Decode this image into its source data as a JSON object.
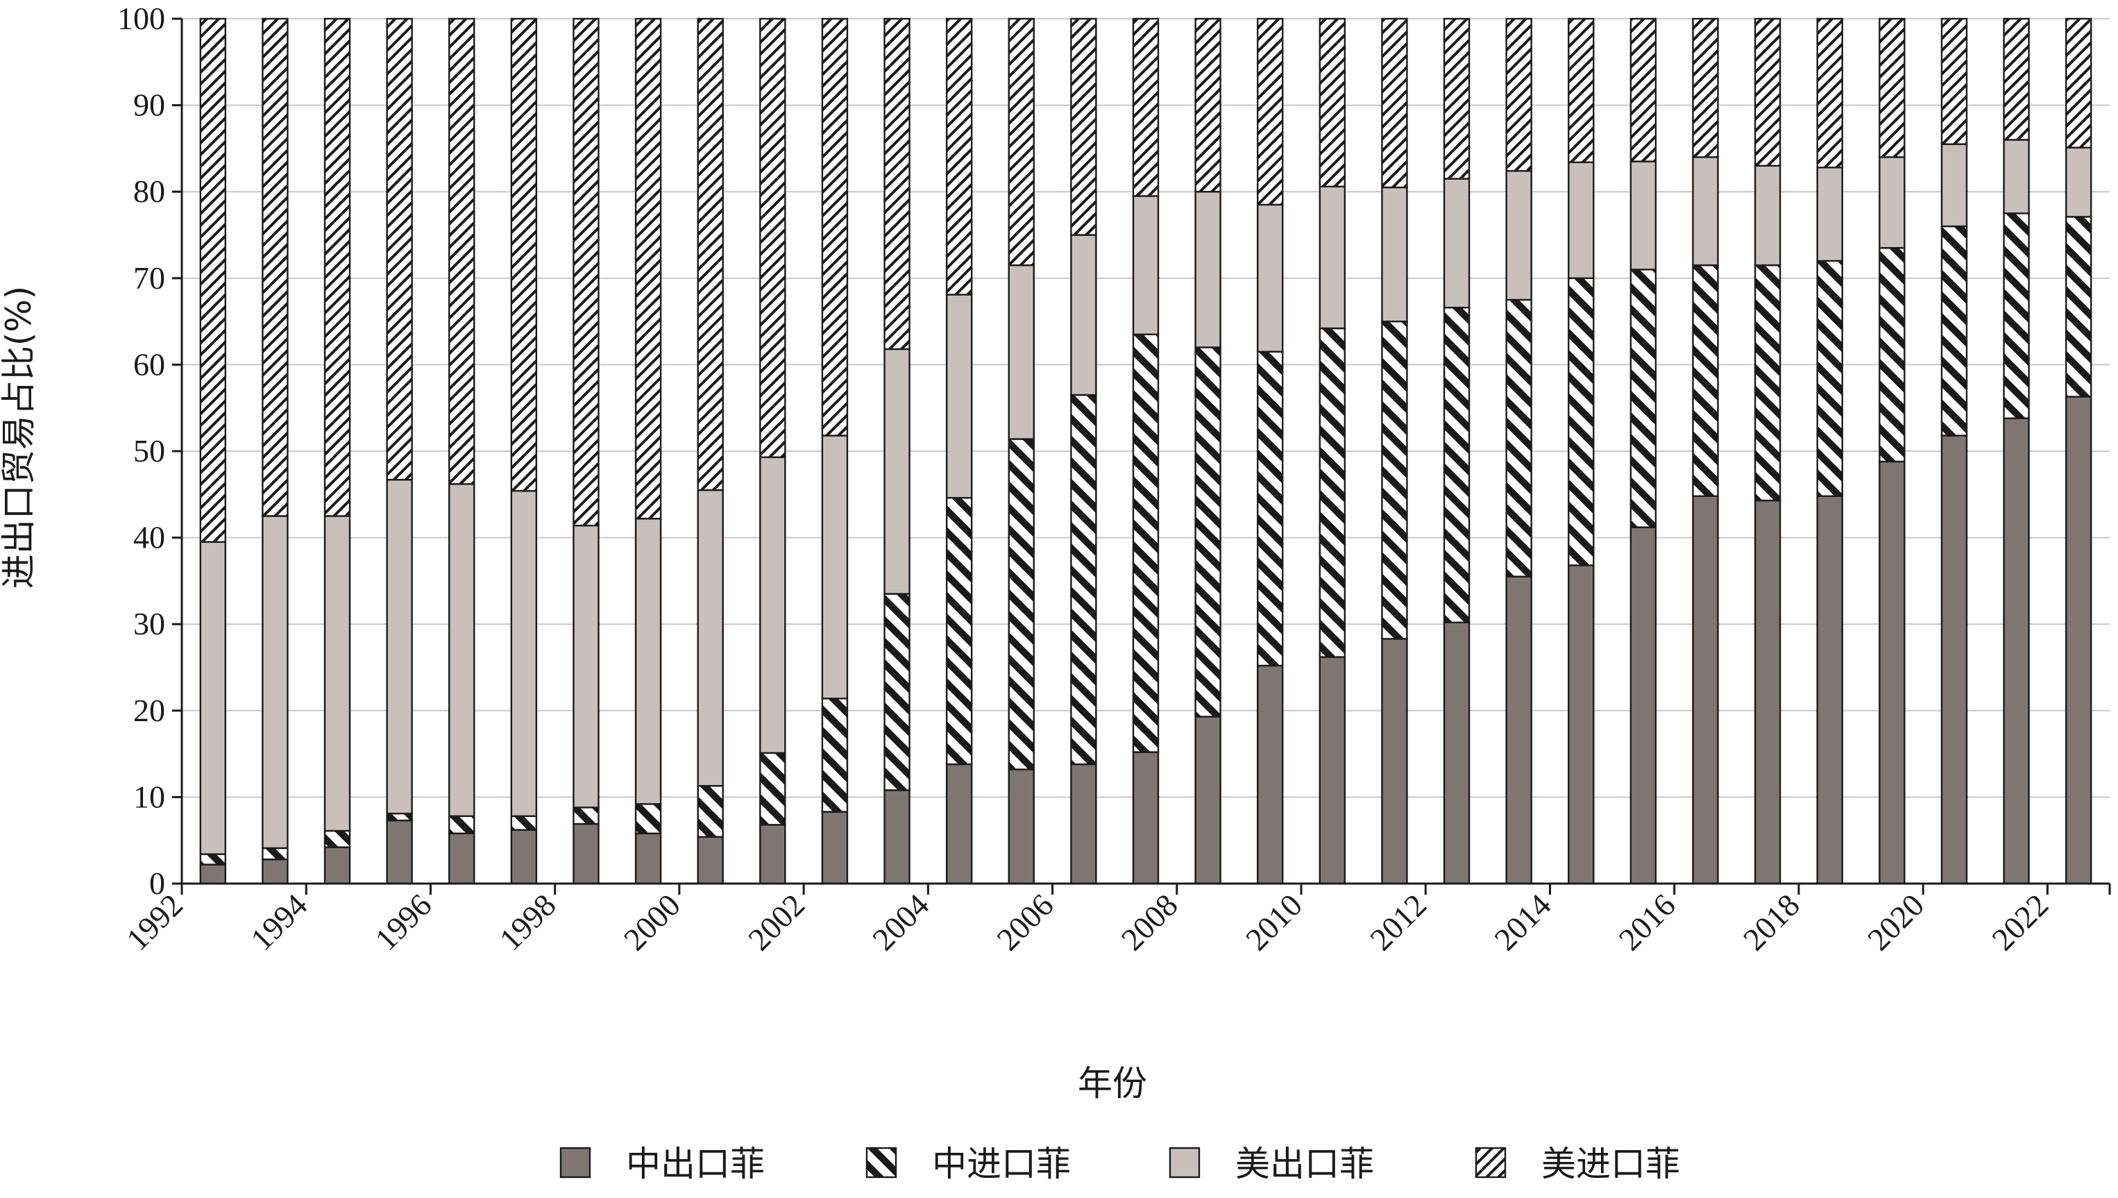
{
  "chart_data": {
    "type": "bar",
    "stacked": true,
    "title": "",
    "xlabel": "年份",
    "ylabel": "进出口贸易占比(%)",
    "ylim": [
      0,
      100
    ],
    "yticks": [
      0,
      10,
      20,
      30,
      40,
      50,
      60,
      70,
      80,
      90,
      100
    ],
    "xticks": [
      "1992",
      "1994",
      "1996",
      "1998",
      "2000",
      "2002",
      "2004",
      "2006",
      "2008",
      "2010",
      "2012",
      "2014",
      "2016",
      "2018",
      "2020",
      "2022"
    ],
    "grid": "horizontal",
    "legend_position": "bottom",
    "categories": [
      "1992",
      "1993",
      "1994",
      "1995",
      "1996",
      "1997",
      "1998",
      "1999",
      "2000",
      "2001",
      "2002",
      "2003",
      "2004",
      "2005",
      "2006",
      "2007",
      "2008",
      "2009",
      "2010",
      "2011",
      "2012",
      "2013",
      "2014",
      "2015",
      "2016",
      "2017",
      "2018",
      "2019",
      "2020",
      "2021",
      "2022"
    ],
    "series": [
      {
        "name": "中出口菲",
        "pattern": "solid-dark",
        "color": "#7f7573",
        "values": [
          2.2,
          2.8,
          4.2,
          7.3,
          5.8,
          6.2,
          6.9,
          5.8,
          5.4,
          6.8,
          8.3,
          10.8,
          13.8,
          13.2,
          13.8,
          15.2,
          19.3,
          25.2,
          26.2,
          28.3,
          30.2,
          35.5,
          36.8,
          41.2,
          44.8,
          44.3,
          44.8,
          48.8,
          51.8,
          53.8,
          56.3
        ]
      },
      {
        "name": "中进口菲",
        "pattern": "wide-diagonal",
        "color": "#1a1a1a",
        "values": [
          1.2,
          1.3,
          1.9,
          0.8,
          2.0,
          1.6,
          1.9,
          3.4,
          5.9,
          8.3,
          13.1,
          22.7,
          30.8,
          38.2,
          42.7,
          48.3,
          42.7,
          36.3,
          38.0,
          36.7,
          36.4,
          32.0,
          33.2,
          29.8,
          26.7,
          27.2,
          27.2,
          24.7,
          24.2,
          23.7,
          20.8
        ]
      },
      {
        "name": "美出口菲",
        "pattern": "solid-light",
        "color": "#c9c0bd",
        "values": [
          36.1,
          38.4,
          36.4,
          38.6,
          38.4,
          37.6,
          32.6,
          33.0,
          34.2,
          34.2,
          30.4,
          28.3,
          23.5,
          20.1,
          18.5,
          16.0,
          18.0,
          17.0,
          16.4,
          15.5,
          14.9,
          14.9,
          13.4,
          12.5,
          12.5,
          11.5,
          10.8,
          10.5,
          9.5,
          8.5,
          8.0
        ]
      },
      {
        "name": "美进口菲",
        "pattern": "fine-diagonal",
        "color": "#1a1a1a",
        "values": [
          60.5,
          57.5,
          57.5,
          53.3,
          53.8,
          54.6,
          58.6,
          57.8,
          54.5,
          50.7,
          48.2,
          38.2,
          31.9,
          28.5,
          25.0,
          20.5,
          20.0,
          21.5,
          19.4,
          19.5,
          18.5,
          17.6,
          16.6,
          16.5,
          16.0,
          17.0,
          17.2,
          16.0,
          14.5,
          14.0,
          14.9
        ]
      }
    ]
  }
}
